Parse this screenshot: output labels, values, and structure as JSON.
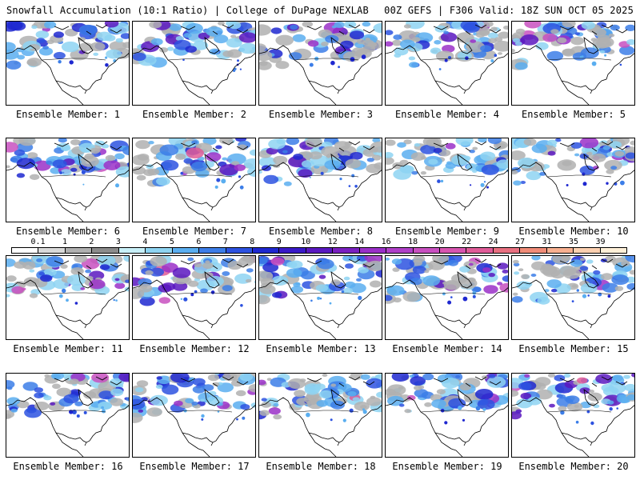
{
  "header": {
    "left": "Snowfall Accumulation (10:1 Ratio) | College of DuPage NEXLAB",
    "right": "00Z GEFS | F306 Valid: 18Z SUN OCT 05 2025"
  },
  "panels": [
    {
      "label": "Ensemble Member: 1"
    },
    {
      "label": "Ensemble Member: 2"
    },
    {
      "label": "Ensemble Member: 3"
    },
    {
      "label": "Ensemble Member: 4"
    },
    {
      "label": "Ensemble Member: 5"
    },
    {
      "label": "Ensemble Member: 6"
    },
    {
      "label": "Ensemble Member: 7"
    },
    {
      "label": "Ensemble Member: 8"
    },
    {
      "label": "Ensemble Member: 9"
    },
    {
      "label": "Ensemble Member: 10"
    },
    {
      "label": "Ensemble Member: 11"
    },
    {
      "label": "Ensemble Member: 12"
    },
    {
      "label": "Ensemble Member: 13"
    },
    {
      "label": "Ensemble Member: 14"
    },
    {
      "label": "Ensemble Member: 15"
    },
    {
      "label": "Ensemble Member: 16"
    },
    {
      "label": "Ensemble Member: 17"
    },
    {
      "label": "Ensemble Member: 18"
    },
    {
      "label": "Ensemble Member: 19"
    },
    {
      "label": "Ensemble Member: 20"
    }
  ],
  "colorbar": {
    "ticks": [
      "0.1",
      "1",
      "2",
      "3",
      "4",
      "5",
      "6",
      "7",
      "8",
      "9",
      "10",
      "12",
      "14",
      "16",
      "18",
      "20",
      "22",
      "24",
      "27",
      "31",
      "35",
      "39"
    ],
    "colors": [
      "#ffffff",
      "#d9d9d9",
      "#b0b0b0",
      "#8c8c8c",
      "#c8f0f8",
      "#8ed4f2",
      "#5aaef0",
      "#3c7ee8",
      "#2d52e0",
      "#1f28d0",
      "#3a1ac8",
      "#5a18c0",
      "#7a20c0",
      "#9a30c8",
      "#b040c8",
      "#c850c0",
      "#d855b0",
      "#e05c98",
      "#e87080",
      "#f08c78",
      "#f8b090",
      "#fcd0b0",
      "#fff0d8"
    ]
  }
}
